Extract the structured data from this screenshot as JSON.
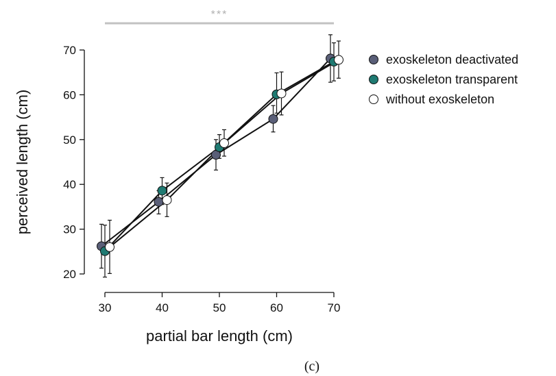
{
  "chart_data": {
    "type": "line",
    "xlabel": "partial bar length (cm)",
    "ylabel": "perceived length (cm)",
    "x": [
      30,
      40,
      50,
      60,
      70
    ],
    "xticks": [
      "30",
      "40",
      "50",
      "60",
      "70"
    ],
    "yticks": [
      "20",
      "30",
      "40",
      "50",
      "60",
      "70"
    ],
    "xlim": [
      27,
      73
    ],
    "ylim": [
      18,
      74
    ],
    "grid": false,
    "legend_position": "top-right",
    "series": [
      {
        "name": "exoskeleton deactivated",
        "color": "#5a5f78",
        "values": [
          26.2,
          36.1,
          46.6,
          54.6,
          68.1
        ],
        "err_low": [
          21.3,
          33.4,
          43.2,
          51.7,
          62.8
        ],
        "err_high": [
          31.1,
          38.6,
          50.0,
          57.6,
          73.4
        ]
      },
      {
        "name": "exoskeleton transparent",
        "color": "#1f7a72",
        "values": [
          25.1,
          38.6,
          48.3,
          60.1,
          67.4
        ],
        "err_low": [
          19.3,
          35.5,
          45.8,
          55.9,
          63.1
        ],
        "err_high": [
          30.9,
          41.5,
          51.1,
          64.9,
          71.6
        ]
      },
      {
        "name": "without exoskeleton",
        "color": "#ffffff",
        "values": [
          26.0,
          36.5,
          49.2,
          60.3,
          67.8
        ],
        "err_low": [
          20.1,
          32.8,
          46.3,
          55.5,
          63.7
        ],
        "err_high": [
          32.0,
          40.3,
          52.2,
          65.1,
          72.0
        ]
      }
    ],
    "significance": {
      "label": "***",
      "from_x": 30,
      "to_x": 70
    },
    "panel_label": "(c)"
  }
}
